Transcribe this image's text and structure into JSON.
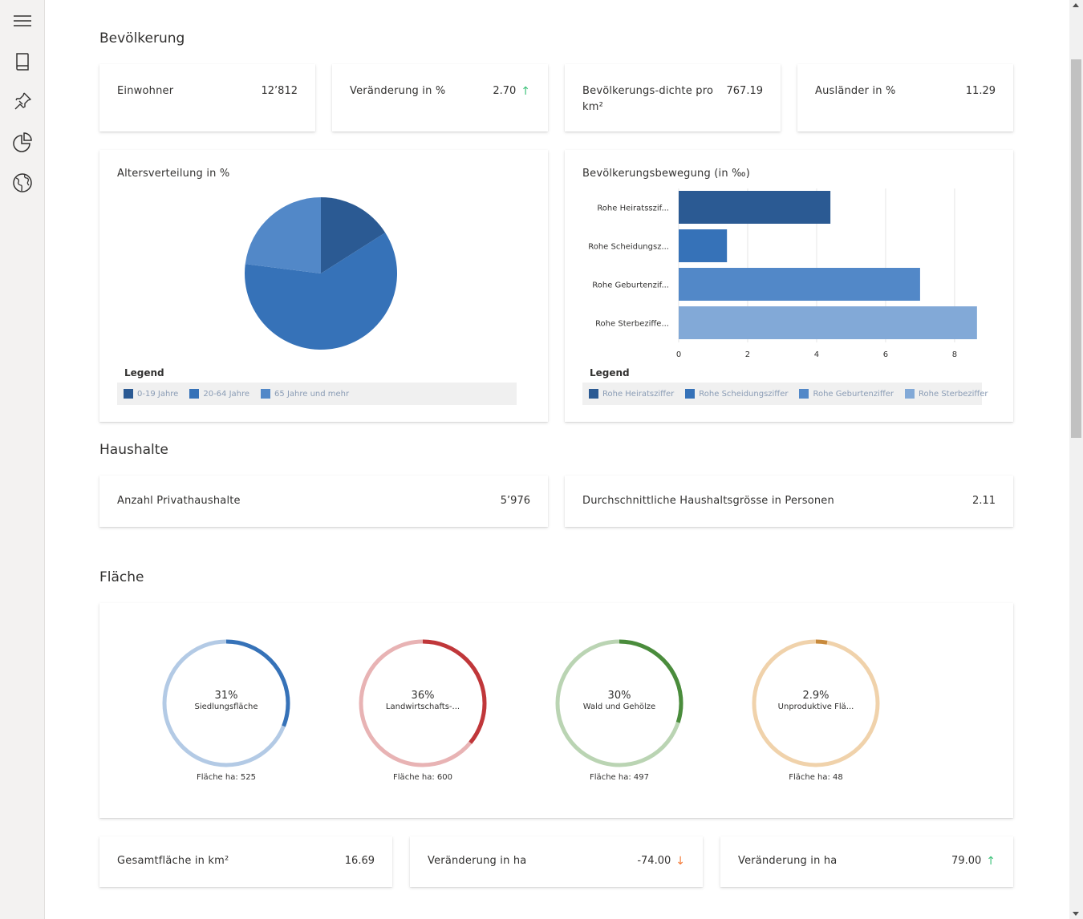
{
  "sidebar": {
    "items": [
      {
        "icon": "hamburger-menu-icon"
      },
      {
        "icon": "book-icon"
      },
      {
        "icon": "pin-icon"
      },
      {
        "icon": "pie-chart-icon"
      },
      {
        "icon": "globe-icon"
      }
    ]
  },
  "sections": {
    "population": "Bevölkerung",
    "households": "Haushalte",
    "area": "Fläche"
  },
  "population_kpis": [
    {
      "label": "Einwohner",
      "value": "12’812",
      "trend": ""
    },
    {
      "label": "Veränderung in %",
      "value": "2.70",
      "trend": "up"
    },
    {
      "label": "Bevölkerungs-dichte pro km²",
      "value": "767.19",
      "trend": ""
    },
    {
      "label": "Ausländer in %",
      "value": "11.29",
      "trend": ""
    }
  ],
  "age_chart": {
    "title": "Altersverteilung in %",
    "legend_title": "Legend",
    "colors": [
      "#2b5a93",
      "#3672b8",
      "#5288c8"
    ]
  },
  "movement_chart": {
    "title": "Bevölkerungsbewegung (in ‰)",
    "legend_title": "Legend",
    "colors": [
      "#2b5a93",
      "#3672b8",
      "#5288c8",
      "#82a9d7"
    ]
  },
  "chart_data": [
    {
      "type": "pie",
      "title": "Altersverteilung in %",
      "categories": [
        "0-19 Jahre",
        "20-64 Jahre",
        "65 Jahre und mehr"
      ],
      "values": [
        16,
        61,
        23
      ]
    },
    {
      "type": "bar",
      "orientation": "horizontal",
      "title": "Bevölkerungsbewegung (in ‰)",
      "categories": [
        "Rohe Heiratsszif...",
        "Rohe Scheidungsz...",
        "Rohe Geburtenzif...",
        "Rohe Sterbeziffe..."
      ],
      "legend": [
        "Rohe Heiratsziffer",
        "Rohe Scheidungsziffer",
        "Rohe Geburtenziffer",
        "Rohe Sterbeziffer"
      ],
      "values": [
        4.4,
        1.4,
        7.0,
        8.65
      ],
      "xticks": [
        "0",
        "2",
        "4",
        "6",
        "8"
      ],
      "xlim": [
        0,
        8.7
      ],
      "grid": true
    },
    {
      "type": "donut",
      "items": [
        {
          "pct_label": "31%",
          "value": 31,
          "label": "Siedlungsfläche",
          "foot": "Fläche ha: 525",
          "color": "#3672b8",
          "track": "#b3cae5"
        },
        {
          "pct_label": "36%",
          "value": 36,
          "label": "Landwirtschafts-...",
          "foot": "Fläche ha: 600",
          "color": "#c0373a",
          "track": "#e8b3b4"
        },
        {
          "pct_label": "30%",
          "value": 30,
          "label": "Wald und Gehölze",
          "foot": "Fläche ha: 497",
          "color": "#4a8c3c",
          "track": "#bad4b3"
        },
        {
          "pct_label": "2.9%",
          "value": 2.9,
          "label": "Unproduktive Flä...",
          "foot": "Fläche ha: 48",
          "color": "#c88a3c",
          "track": "#f0d2ab"
        }
      ]
    }
  ],
  "household_kpis": [
    {
      "label": "Anzahl Privathaushalte",
      "value": "5’976"
    },
    {
      "label": "Durchschnittliche Haushaltsgrösse in Personen",
      "value": "2.11"
    }
  ],
  "area_kpis": [
    {
      "label": "Gesamtfläche in km²",
      "value": "16.69",
      "trend": ""
    },
    {
      "label": "Veränderung in ha",
      "value": "-74.00",
      "trend": "down"
    },
    {
      "label": "Veränderung in ha",
      "value": "79.00",
      "trend": "up"
    }
  ]
}
